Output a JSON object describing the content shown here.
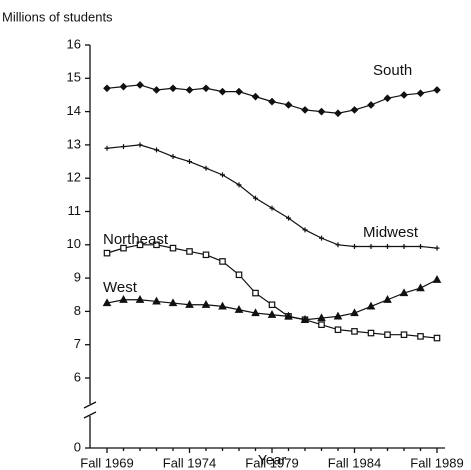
{
  "chart_data": {
    "type": "line",
    "ylabel": "Millions of students",
    "xlabel": "Year",
    "x": [
      1969,
      1970,
      1971,
      1972,
      1973,
      1974,
      1975,
      1976,
      1977,
      1978,
      1979,
      1980,
      1981,
      1982,
      1983,
      1984,
      1985,
      1986,
      1987,
      1988,
      1989
    ],
    "xlim": [
      1969,
      1989
    ],
    "xticks": [
      {
        "value": 1969,
        "label": "Fall 1969"
      },
      {
        "value": 1974,
        "label": "Fall 1974"
      },
      {
        "value": 1979,
        "label": "Fall 1979"
      },
      {
        "value": 1984,
        "label": "Fall 1984"
      },
      {
        "value": 1989,
        "label": "Fall 1989"
      }
    ],
    "ylim": [
      0,
      16
    ],
    "yticks": [
      0,
      6,
      7,
      8,
      9,
      10,
      11,
      12,
      13,
      14,
      15,
      16
    ],
    "axis_break": true,
    "series": [
      {
        "name": "South",
        "color": "#111111",
        "marker": "diamond",
        "values": [
          14.7,
          14.75,
          14.8,
          14.65,
          14.7,
          14.65,
          14.7,
          14.6,
          14.6,
          14.45,
          14.3,
          14.2,
          14.05,
          14.0,
          13.95,
          14.05,
          14.2,
          14.4,
          14.5,
          14.55,
          14.65
        ]
      },
      {
        "name": "Midwest",
        "color": "#111111",
        "marker": "plus",
        "values": [
          12.9,
          12.95,
          13.0,
          12.85,
          12.65,
          12.5,
          12.3,
          12.1,
          11.8,
          11.4,
          11.1,
          10.8,
          10.45,
          10.2,
          10.0,
          9.95,
          9.95,
          9.95,
          9.95,
          9.95,
          9.9
        ]
      },
      {
        "name": "Northeast",
        "color": "#111111",
        "marker": "square",
        "values": [
          9.75,
          9.9,
          10.0,
          10.0,
          9.9,
          9.8,
          9.7,
          9.5,
          9.1,
          8.55,
          8.2,
          7.85,
          7.75,
          7.6,
          7.45,
          7.4,
          7.35,
          7.3,
          7.3,
          7.25,
          7.2
        ]
      },
      {
        "name": "West",
        "color": "#111111",
        "marker": "triangle",
        "values": [
          8.25,
          8.35,
          8.35,
          8.3,
          8.25,
          8.2,
          8.2,
          8.15,
          8.05,
          7.95,
          7.9,
          7.85,
          7.75,
          7.8,
          7.85,
          7.95,
          8.15,
          8.35,
          8.55,
          8.7,
          8.95
        ]
      }
    ]
  }
}
